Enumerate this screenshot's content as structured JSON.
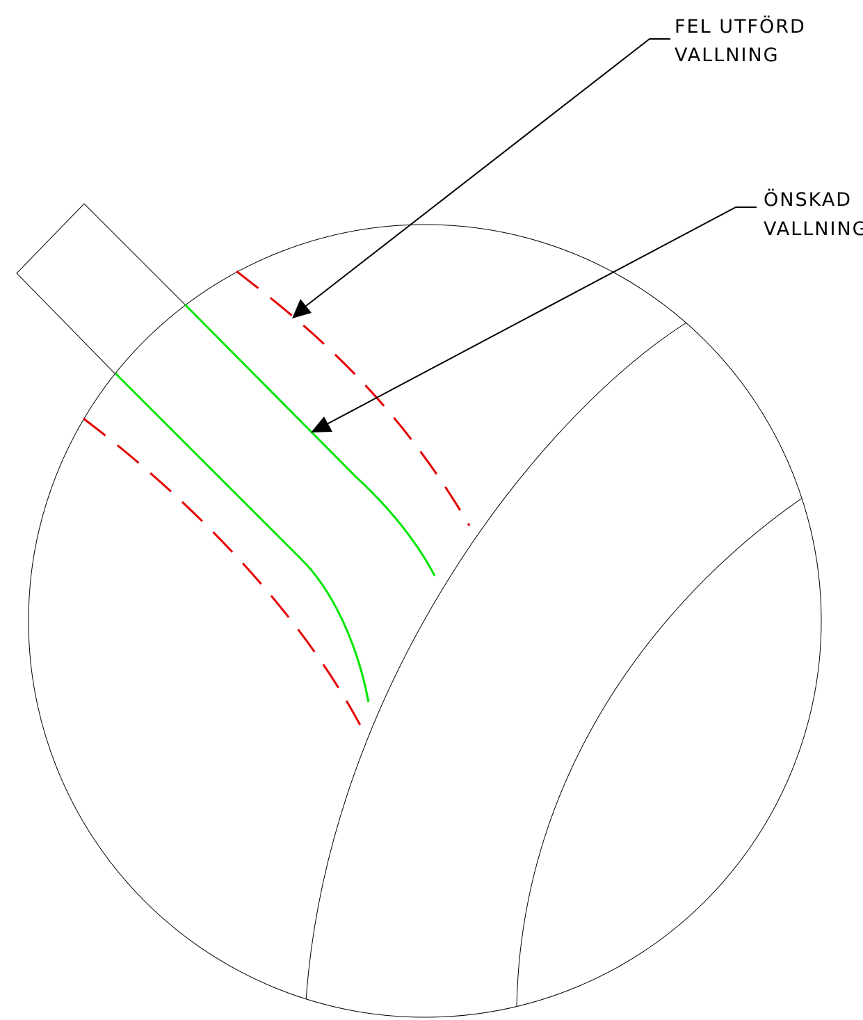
{
  "annotations": {
    "wrong": {
      "line1": "FEL UTFÖRD",
      "line2": "VALLNING"
    },
    "desired": {
      "line1": "ÖNSKAD",
      "line2": "VALLNING"
    }
  },
  "colors": {
    "outline": "#000000",
    "desired_fillet": "#00e600",
    "wrong_fillet": "#e60000",
    "leader": "#000000"
  }
}
